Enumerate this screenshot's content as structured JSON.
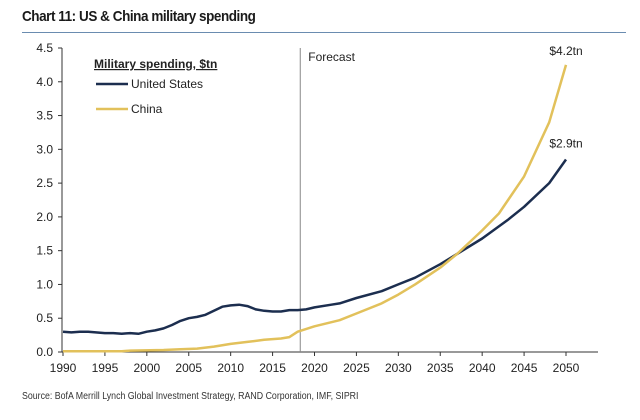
{
  "chart_data": {
    "type": "line",
    "title": "Chart 11: US & China military spending",
    "source": "Source: BofA Merrill Lynch Global Investment Strategy, RAND Corporation, IMF, SIPRI",
    "legend_title": "Military spending, $tn",
    "legend_placement": "top-left",
    "xlim": [
      1990,
      2053
    ],
    "ylim": [
      0,
      4.5
    ],
    "xticks": [
      1990,
      1995,
      2000,
      2005,
      2010,
      2015,
      2020,
      2025,
      2030,
      2035,
      2040,
      2045,
      2050
    ],
    "yticks": [
      "0.0",
      "0.5",
      "1.0",
      "1.5",
      "2.0",
      "2.5",
      "3.0",
      "3.5",
      "4.0",
      "4.5"
    ],
    "grid": false,
    "forecast_start": 2018.3,
    "forecast_label": "Forecast",
    "series": [
      {
        "name": "United States",
        "color": "#1c2e4f",
        "end_label": "$2.9tn",
        "x": [
          1990,
          1991,
          1992,
          1993,
          1995,
          1996,
          1997,
          1998,
          1999,
          2000,
          2001,
          2002,
          2003,
          2004,
          2005,
          2006,
          2007,
          2008,
          2009,
          2010,
          2011,
          2012,
          2013,
          2014,
          2015,
          2016,
          2017,
          2018,
          2019,
          2020,
          2022,
          2023,
          2025,
          2028,
          2030,
          2032,
          2035,
          2037,
          2040,
          2043,
          2045,
          2048,
          2050
        ],
        "y": [
          0.3,
          0.29,
          0.3,
          0.3,
          0.28,
          0.28,
          0.27,
          0.28,
          0.27,
          0.3,
          0.32,
          0.35,
          0.4,
          0.46,
          0.5,
          0.52,
          0.55,
          0.61,
          0.67,
          0.69,
          0.7,
          0.68,
          0.63,
          0.61,
          0.6,
          0.6,
          0.62,
          0.62,
          0.63,
          0.66,
          0.7,
          0.72,
          0.8,
          0.9,
          1.0,
          1.1,
          1.3,
          1.45,
          1.68,
          1.95,
          2.15,
          2.5,
          2.85
        ]
      },
      {
        "name": "China",
        "color": "#e2c15b",
        "end_label": "$4.2tn",
        "x": [
          1990,
          1997,
          1998,
          2002,
          2004,
          2006,
          2008,
          2010,
          2012,
          2014,
          2016,
          2017,
          2018,
          2020,
          2023,
          2025,
          2028,
          2030,
          2032,
          2035,
          2037,
          2040,
          2042,
          2045,
          2048,
          2050
        ],
        "y": [
          0.01,
          0.01,
          0.02,
          0.03,
          0.04,
          0.05,
          0.08,
          0.12,
          0.15,
          0.18,
          0.2,
          0.22,
          0.3,
          0.38,
          0.47,
          0.57,
          0.72,
          0.85,
          1.0,
          1.25,
          1.45,
          1.8,
          2.05,
          2.6,
          3.4,
          4.25
        ]
      }
    ]
  }
}
